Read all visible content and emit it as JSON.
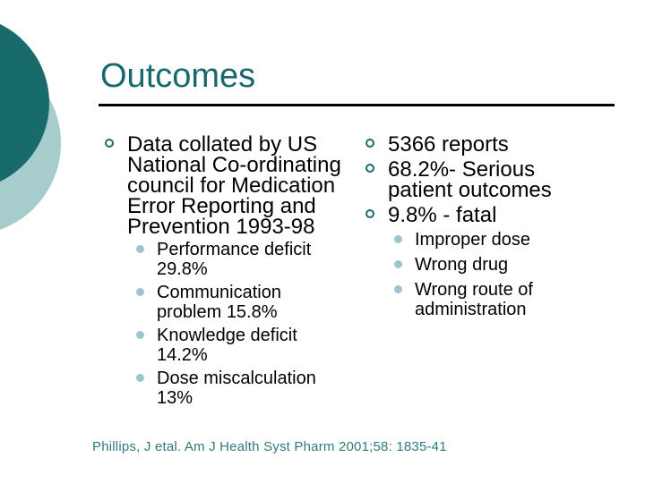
{
  "slide": {
    "title": "Outcomes",
    "left_column": {
      "bullet_1": "Data collated by US\nNational Co-ordinating\ncouncil for Medication\nError Reporting and\nPrevention 1993-98",
      "sub_bullets": [
        "Performance deficit\n29.8%",
        "Communication\nproblem 15.8%",
        "Knowledge deficit\n14.2%",
        "Dose miscalculation\n13%"
      ]
    },
    "right_column": {
      "bullet_1": "5366 reports",
      "bullet_2": "68.2%- Serious\npatient outcomes",
      "bullet_3": "9.8% - fatal",
      "sub_bullets": [
        "Improper dose",
        "Wrong drug",
        "Wrong route of\nadministration"
      ]
    },
    "footer": "Phillips, J etal. Am J Health Syst Pharm 2001;58: 1835-41",
    "colors": {
      "accent_dark_teal": "#186B6B",
      "accent_light_teal": "#A6CCCC",
      "bullet_ring": "#1A6B6B",
      "sub_bullet_dot": "#9DC6CC",
      "title_text": "#17696C",
      "body_text": "#000000",
      "footer_text": "#31797C",
      "divider": "#000000"
    }
  }
}
